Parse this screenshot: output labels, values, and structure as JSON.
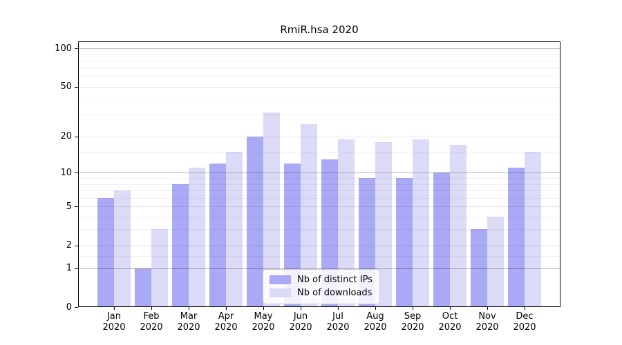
{
  "figure": {
    "background": "#ffffff"
  },
  "chart_data": {
    "type": "bar",
    "title": "RmiR.hsa 2020",
    "categories": [
      "Jan 2020",
      "Feb 2020",
      "Mar 2020",
      "Apr 2020",
      "May 2020",
      "Jun 2020",
      "Jul 2020",
      "Aug 2020",
      "Sep 2020",
      "Oct 2020",
      "Nov 2020",
      "Dec 2020"
    ],
    "x_tick_months": [
      "Jan",
      "Feb",
      "Mar",
      "Apr",
      "May",
      "Jun",
      "Jul",
      "Aug",
      "Sep",
      "Oct",
      "Nov",
      "Dec"
    ],
    "x_tick_year": "2020",
    "series": [
      {
        "name": "Nb of distinct IPs",
        "color": "#a9a9f6",
        "values": [
          6,
          1,
          8,
          12,
          20,
          12,
          13,
          9,
          9,
          10,
          3,
          11
        ]
      },
      {
        "name": "Nb of downloads",
        "color": "#dbdbf8",
        "values": [
          7,
          3,
          11,
          15,
          31,
          25,
          19,
          18,
          19,
          17,
          4,
          15
        ]
      }
    ],
    "yscale": "log1p",
    "ylim": [
      0,
      113
    ],
    "yticks": [
      0,
      1,
      2,
      5,
      10,
      20,
      50,
      100
    ],
    "pow10_ticks": [
      1,
      10,
      100
    ],
    "minor_gridlines": [
      1.5,
      3,
      4,
      6,
      7,
      8,
      9,
      15,
      30,
      40,
      60,
      70,
      80,
      90
    ],
    "grid": true,
    "legend_position": "lower-center"
  }
}
